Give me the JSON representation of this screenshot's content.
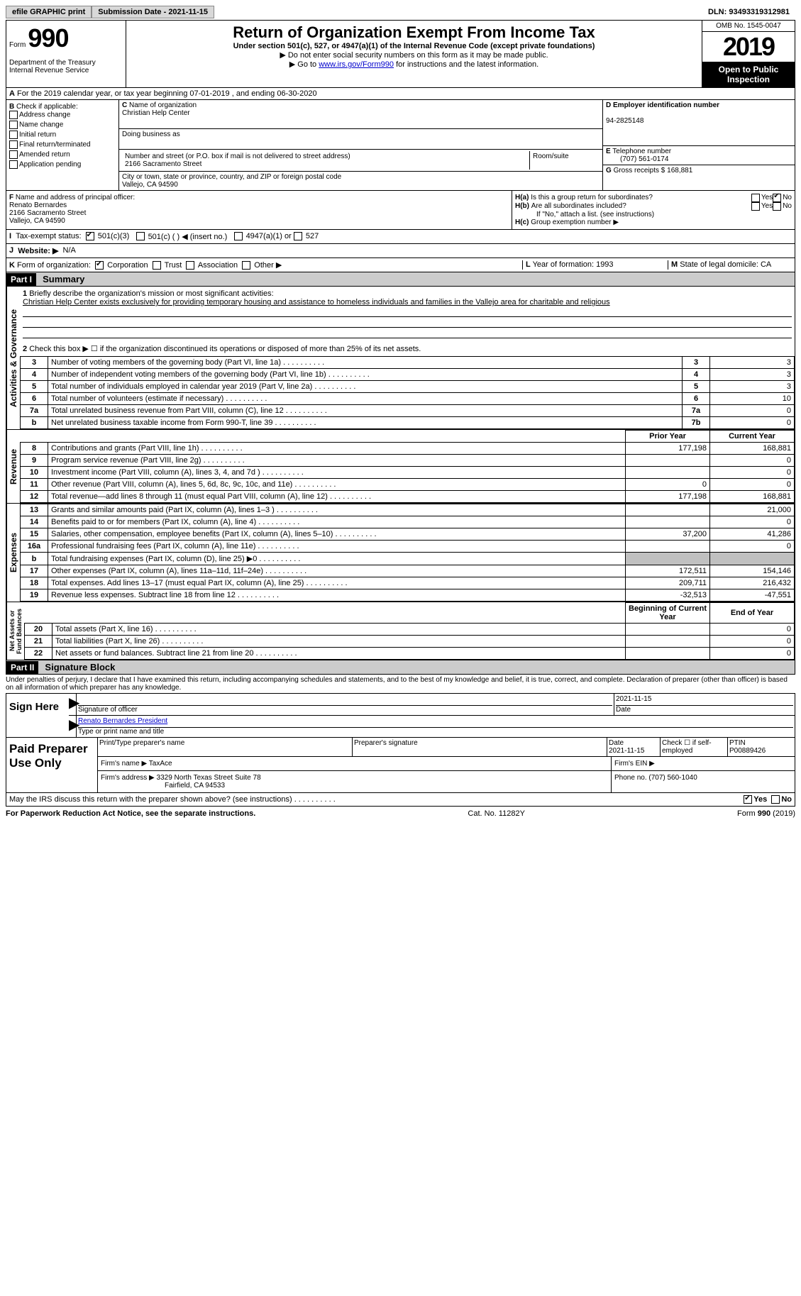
{
  "topbar": {
    "efile": "efile GRAPHIC print",
    "submission": "Submission Date - 2021-11-15",
    "dln": "DLN: 93493319312981"
  },
  "header": {
    "form": "Form",
    "num": "990",
    "dept": "Department of the Treasury\nInternal Revenue Service",
    "title": "Return of Organization Exempt From Income Tax",
    "sub": "Under section 501(c), 527, or 4947(a)(1) of the Internal Revenue Code (except private foundations)",
    "instr1": "Do not enter social security numbers on this form as it may be made public.",
    "instr2a": "Go to ",
    "instr2link": "www.irs.gov/Form990",
    "instr2b": " for instructions and the latest information.",
    "omb": "OMB No. 1545-0047",
    "year": "2019",
    "public": "Open to Public Inspection"
  },
  "lineA": "For the 2019 calendar year, or tax year beginning 07-01-2019    , and ending 06-30-2020",
  "boxB": {
    "label": "Check if applicable:",
    "items": [
      "Address change",
      "Name change",
      "Initial return",
      "Final return/terminated",
      "Amended return",
      "Application pending"
    ]
  },
  "boxC": {
    "nameLabel": "Name of organization",
    "name": "Christian Help Center",
    "dba": "Doing business as",
    "streetLabel": "Number and street (or P.O. box if mail is not delivered to street address)",
    "street": "2166 Sacramento Street",
    "suite": "Room/suite",
    "cityLabel": "City or town, state or province, country, and ZIP or foreign postal code",
    "city": "Vallejo, CA  94590"
  },
  "boxD": {
    "label": "Employer identification number",
    "val": "94-2825148"
  },
  "boxE": {
    "label": "Telephone number",
    "val": "(707) 561-0174"
  },
  "boxG": {
    "label": "Gross receipts $",
    "val": "168,881"
  },
  "boxF": {
    "label": "Name and address of principal officer:",
    "name": "Renato Bernardes",
    "street": "2166 Sacramento Street",
    "city": "Vallejo, CA  94590"
  },
  "boxH": {
    "a": "Is this a group return for subordinates?",
    "aNo": true,
    "b": "Are all subordinates included?",
    "bNote": "If \"No,\" attach a list. (see instructions)",
    "c": "Group exemption number ▶"
  },
  "rowI": {
    "label": "Tax-exempt status:",
    "c3": "501(c)(3)",
    "c": "501(c) (  ) ◀ (insert no.)",
    "a1": "4947(a)(1) or",
    "s527": "527"
  },
  "rowJ": {
    "label": "Website: ▶",
    "val": "N/A"
  },
  "rowK": {
    "label": "Form of organization:",
    "corp": "Corporation",
    "trust": "Trust",
    "assoc": "Association",
    "other": "Other ▶"
  },
  "rowLM": {
    "L": "Year of formation: 1993",
    "M": "State of legal domicile: CA"
  },
  "part1": {
    "bar": "Part I",
    "title": "Summary",
    "q1": "Briefly describe the organization's mission or most significant activities:",
    "q1text": "Christian Help Center exists exclusively for providing temporary housing and assistance to homeless individuals and families in the Vallejo area for charitable and religious",
    "q2": "Check this box ▶ ☐ if the organization discontinued its operations or disposed of more than 25% of its net assets.",
    "rows_gov": [
      {
        "n": "3",
        "t": "Number of voting members of the governing body (Part VI, line 1a)",
        "box": "3",
        "v": "3"
      },
      {
        "n": "4",
        "t": "Number of independent voting members of the governing body (Part VI, line 1b)",
        "box": "4",
        "v": "3"
      },
      {
        "n": "5",
        "t": "Total number of individuals employed in calendar year 2019 (Part V, line 2a)",
        "box": "5",
        "v": "3"
      },
      {
        "n": "6",
        "t": "Total number of volunteers (estimate if necessary)",
        "box": "6",
        "v": "10"
      },
      {
        "n": "7a",
        "t": "Total unrelated business revenue from Part VIII, column (C), line 12",
        "box": "7a",
        "v": "0"
      },
      {
        "n": "b",
        "t": "Net unrelated business taxable income from Form 990-T, line 39",
        "box": "7b",
        "v": "0"
      }
    ],
    "hdr_prior": "Prior Year",
    "hdr_curr": "Current Year",
    "rev": [
      {
        "n": "8",
        "t": "Contributions and grants (Part VIII, line 1h)",
        "p": "177,198",
        "c": "168,881"
      },
      {
        "n": "9",
        "t": "Program service revenue (Part VIII, line 2g)",
        "p": "",
        "c": "0"
      },
      {
        "n": "10",
        "t": "Investment income (Part VIII, column (A), lines 3, 4, and 7d )",
        "p": "",
        "c": "0"
      },
      {
        "n": "11",
        "t": "Other revenue (Part VIII, column (A), lines 5, 6d, 8c, 9c, 10c, and 11e)",
        "p": "0",
        "c": "0"
      },
      {
        "n": "12",
        "t": "Total revenue—add lines 8 through 11 (must equal Part VIII, column (A), line 12)",
        "p": "177,198",
        "c": "168,881"
      }
    ],
    "exp": [
      {
        "n": "13",
        "t": "Grants and similar amounts paid (Part IX, column (A), lines 1–3 )",
        "p": "",
        "c": "21,000"
      },
      {
        "n": "14",
        "t": "Benefits paid to or for members (Part IX, column (A), line 4)",
        "p": "",
        "c": "0"
      },
      {
        "n": "15",
        "t": "Salaries, other compensation, employee benefits (Part IX, column (A), lines 5–10)",
        "p": "37,200",
        "c": "41,286"
      },
      {
        "n": "16a",
        "t": "Professional fundraising fees (Part IX, column (A), line 11e)",
        "p": "",
        "c": "0"
      },
      {
        "n": "b",
        "t": "Total fundraising expenses (Part IX, column (D), line 25) ▶0",
        "p": "grey",
        "c": "grey"
      },
      {
        "n": "17",
        "t": "Other expenses (Part IX, column (A), lines 11a–11d, 11f–24e)",
        "p": "172,511",
        "c": "154,146"
      },
      {
        "n": "18",
        "t": "Total expenses. Add lines 13–17 (must equal Part IX, column (A), line 25)",
        "p": "209,711",
        "c": "216,432"
      },
      {
        "n": "19",
        "t": "Revenue less expenses. Subtract line 18 from line 12",
        "p": "-32,513",
        "c": "-47,551"
      }
    ],
    "hdr_beg": "Beginning of Current Year",
    "hdr_end": "End of Year",
    "net": [
      {
        "n": "20",
        "t": "Total assets (Part X, line 16)",
        "p": "",
        "c": "0"
      },
      {
        "n": "21",
        "t": "Total liabilities (Part X, line 26)",
        "p": "",
        "c": "0"
      },
      {
        "n": "22",
        "t": "Net assets or fund balances. Subtract line 21 from line 20",
        "p": "",
        "c": "0"
      }
    ]
  },
  "part2": {
    "bar": "Part II",
    "title": "Signature Block",
    "decl": "Under penalties of perjury, I declare that I have examined this return, including accompanying schedules and statements, and to the best of my knowledge and belief, it is true, correct, and complete. Declaration of preparer (other than officer) is based on all information of which preparer has any knowledge.",
    "signHere": "Sign Here",
    "sigOfficer": "Signature of officer",
    "sigDate": "Date",
    "dateVal": "2021-11-15",
    "officerName": "Renato Bernardes President",
    "typeName": "Type or print name and title",
    "paid": "Paid Preparer Use Only",
    "prepName": "Print/Type preparer's name",
    "prepSig": "Preparer's signature",
    "prepDate": "Date",
    "prepDateVal": "2021-11-15",
    "selfEmp": "Check ☐ if self-employed",
    "ptin": "PTIN",
    "ptinVal": "P00889426",
    "firmName": "Firm's name    ▶",
    "firmNameVal": "TaxAce",
    "firmEin": "Firm's EIN ▶",
    "firmAddr": "Firm's address ▶",
    "firmAddrVal1": "3329 North Texas Street Suite 78",
    "firmAddrVal2": "Fairfield, CA  94533",
    "firmPhone": "Phone no. (707) 560-1040",
    "discuss": "May the IRS discuss this return with the preparer shown above? (see instructions)",
    "discussYes": true
  },
  "footer": {
    "left": "For Paperwork Reduction Act Notice, see the separate instructions.",
    "mid": "Cat. No. 11282Y",
    "right": "Form 990 (2019)"
  }
}
